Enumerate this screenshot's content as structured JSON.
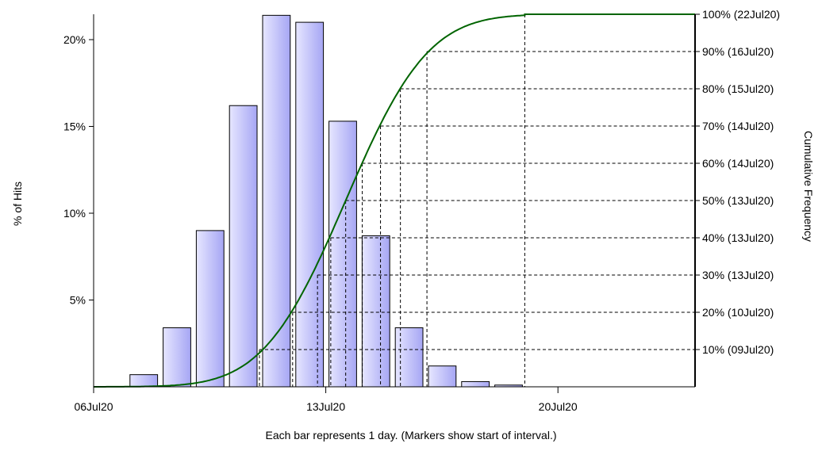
{
  "chart_data": {
    "type": "bar",
    "xlabel": "Each bar represents 1 day. (Markers show start of interval.)",
    "ylabel": "% of Hits",
    "y2label": "Cumulative Frequency",
    "x_ticks": [
      "06Jul20",
      "13Jul20",
      "20Jul20"
    ],
    "y_ticks": [
      "5%",
      "10%",
      "15%",
      "20%"
    ],
    "ylim": [
      0,
      21.5
    ],
    "bin_start_dates": [
      "06Jul20",
      "07Jul20",
      "08Jul20",
      "09Jul20",
      "10Jul20",
      "11Jul20",
      "12Jul20",
      "13Jul20",
      "14Jul20",
      "15Jul20",
      "16Jul20",
      "17Jul20",
      "18Jul20",
      "19Jul20",
      "20Jul20",
      "21Jul20",
      "22Jul20",
      "23Jul20",
      "24Jul20"
    ],
    "bars": [
      {
        "start": "07Jul20",
        "value": 0.7
      },
      {
        "start": "08Jul20",
        "value": 3.4
      },
      {
        "start": "09Jul20",
        "value": 9.0
      },
      {
        "start": "10Jul20",
        "value": 16.2
      },
      {
        "start": "11Jul20",
        "value": 21.4
      },
      {
        "start": "12Jul20",
        "value": 21.0
      },
      {
        "start": "13Jul20",
        "value": 15.3
      },
      {
        "start": "14Jul20",
        "value": 8.7
      },
      {
        "start": "15Jul20",
        "value": 3.4
      },
      {
        "start": "16Jul20",
        "value": 1.2
      },
      {
        "start": "17Jul20",
        "value": 0.3
      },
      {
        "start": "18Jul20",
        "value": 0.1
      }
    ],
    "cumulative_labels": [
      "10% (09Jul20)",
      "20% (10Jul20)",
      "30% (13Jul20)",
      "40% (13Jul20)",
      "50% (13Jul20)",
      "60% (14Jul20)",
      "70% (14Jul20)",
      "80% (15Jul20)",
      "90% (16Jul20)",
      "100% (22Jul20)"
    ],
    "cumulative_levels": [
      10,
      20,
      30,
      40,
      50,
      60,
      70,
      80,
      90,
      100
    ],
    "cumulative_x_days": [
      5.0,
      6.0,
      6.75,
      7.15,
      7.6,
      8.1,
      8.65,
      9.25,
      10.05,
      13.0
    ],
    "cumulative_curve": {
      "mean_day": 7.6,
      "sd_day": 1.95,
      "start_day": 0.0,
      "end_day": 13.0
    },
    "colors": {
      "bar_fill_dark": "#a6a6f4",
      "bar_fill_light": "#e6e6ff",
      "bar_stroke": "#000000",
      "curve": "#006400",
      "grid": "#000000"
    }
  }
}
